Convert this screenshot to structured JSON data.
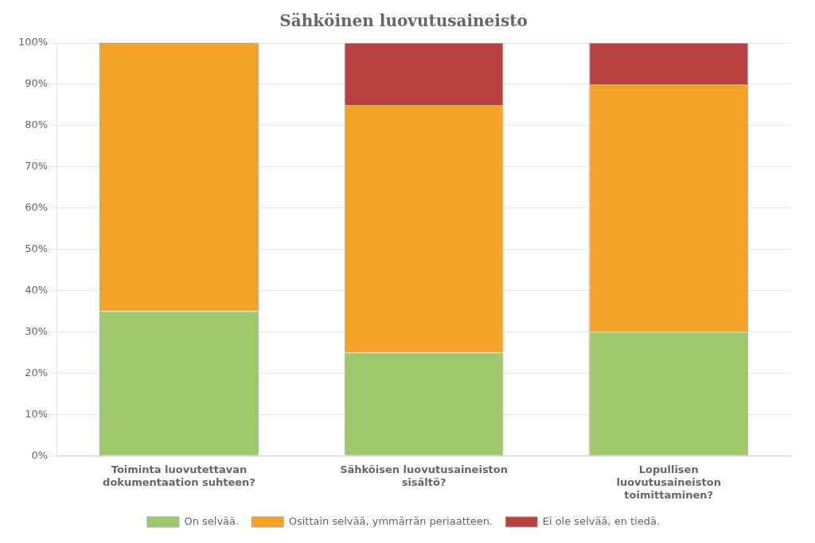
{
  "chart_data": {
    "type": "bar",
    "title": "Sähköinen luovutusaineisto",
    "categories": [
      "Toiminta luovutettavan\ndokumentaation suhteen?",
      "Sähköisen luovutusaineiston\nsisältö?",
      "Lopullisen\nluovutusaineiston\ntoimittaminen?"
    ],
    "series": [
      {
        "name": "On selvää.",
        "color": "#9ec86a",
        "values": [
          35,
          25,
          30
        ]
      },
      {
        "name": "Osittain selvää, ymmärrän periaatteen.",
        "color": "#f5a228",
        "values": [
          65,
          60,
          60
        ]
      },
      {
        "name": "Ei ole selvää, en tiedä.",
        "color": "#b94040",
        "values": [
          0,
          15,
          10
        ]
      }
    ],
    "ylim": [
      0,
      100
    ],
    "yticks": [
      {
        "value": 0,
        "label": "0%"
      },
      {
        "value": 10,
        "label": "10%"
      },
      {
        "value": 20,
        "label": "20%"
      },
      {
        "value": 30,
        "label": "30%"
      },
      {
        "value": 40,
        "label": "40%"
      },
      {
        "value": 50,
        "label": "50%"
      },
      {
        "value": 60,
        "label": "60%"
      },
      {
        "value": 70,
        "label": "70%"
      },
      {
        "value": 80,
        "label": "80%"
      },
      {
        "value": 90,
        "label": "90%"
      },
      {
        "value": 100,
        "label": "100%"
      }
    ],
    "stacked": true,
    "grid": true,
    "legend": "bottom"
  }
}
